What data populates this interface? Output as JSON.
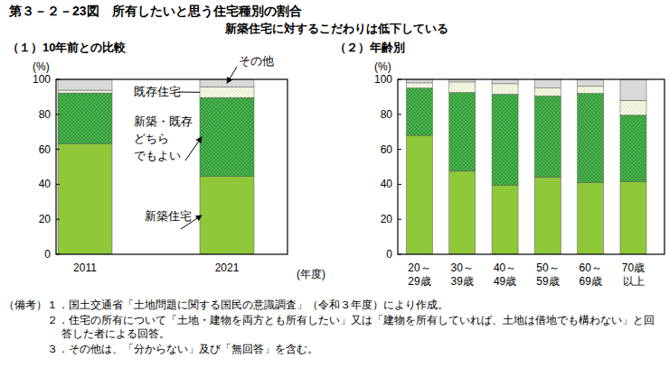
{
  "figure": {
    "title": "第３－２－23図　所有したいと思う住宅種別の割合",
    "subtitle": "新築住宅に対するこだわりは低下している",
    "notes_label": "（備考）",
    "notes": [
      "１．国土交通省「土地問題に関する国民の意識調査」（令和３年度）により作成。",
      "２．住宅の所有について「土地・建物を両方とも所有したい」又は「建物を所有していれば、土地は借地でも構わない」と回答した者による回答。",
      "３．その他は、「分からない」及び「無回答」を含む。"
    ]
  },
  "chart_data": [
    {
      "type": "bar",
      "stacked": true,
      "title": "（１）10年前との比較",
      "y_label": "(%)",
      "x_label": "(年度)",
      "categories": [
        "2011",
        "2021"
      ],
      "series": [
        {
          "name": "新築住宅",
          "color": "#8fc93a",
          "values": [
            63.2,
            44.5
          ]
        },
        {
          "name": "新築・既存どちらでもよい",
          "color": "#2e9b3c",
          "values": [
            29.0,
            45.1
          ]
        },
        {
          "name": "既存住宅",
          "color": "#ffffff",
          "values": [
            1.6,
            6.0
          ]
        },
        {
          "name": "その他",
          "color": "#d9d9d9",
          "values": [
            6.2,
            4.4
          ]
        }
      ],
      "ylim": [
        0,
        100
      ],
      "yticks": [
        0,
        20,
        40,
        60,
        80,
        100
      ],
      "grid": false,
      "data_labels": false
    },
    {
      "type": "bar",
      "stacked": true,
      "title": "（２）年齢別",
      "y_label": "(%)",
      "categories": [
        "20～29歳",
        "30～39歳",
        "40～49歳",
        "50～59歳",
        "60～69歳",
        "70歳以上"
      ],
      "series": [
        {
          "color": "#8fc93a",
          "values": [
            68.0,
            47.5,
            39.5,
            44.0,
            41.0,
            41.5
          ]
        },
        {
          "color": "#2e9b3c",
          "values": [
            27.0,
            45.0,
            52.0,
            46.5,
            51.0,
            38.0
          ]
        },
        {
          "color": "#ffffff",
          "values": [
            3.0,
            6.0,
            6.0,
            4.5,
            4.0,
            8.5
          ]
        },
        {
          "color": "#d9d9d9",
          "values": [
            2.0,
            1.5,
            2.5,
            5.0,
            4.0,
            12.0
          ]
        }
      ],
      "ylim": [
        0,
        100
      ],
      "yticks": [
        0,
        20,
        40,
        60,
        80,
        100
      ],
      "grid": false,
      "data_labels": false
    }
  ]
}
